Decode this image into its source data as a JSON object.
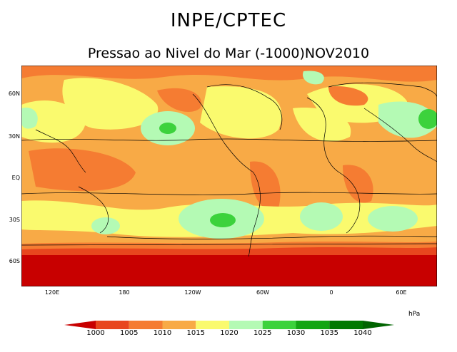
{
  "header": {
    "title": "INPE/CPTEC",
    "subtitle": "Pressao ao Nivel do Mar (-1000)NOV2010"
  },
  "map": {
    "lat_labels": [
      "60N",
      "30N",
      "EQ",
      "30S",
      "60S"
    ],
    "lon_labels": [
      "120E",
      "180",
      "120W",
      "60W",
      "0",
      "60E"
    ]
  },
  "colorbar": {
    "unit": "hPa",
    "levels": [
      "1000",
      "1005",
      "1010",
      "1015",
      "1020",
      "1025",
      "1030",
      "1035",
      "1040"
    ],
    "colors": [
      "#c80000",
      "#e8461e",
      "#f57c32",
      "#f8aa46",
      "#fafa6e",
      "#b4fab4",
      "#3cd23c",
      "#14a514",
      "#007800",
      "#006400"
    ]
  }
}
